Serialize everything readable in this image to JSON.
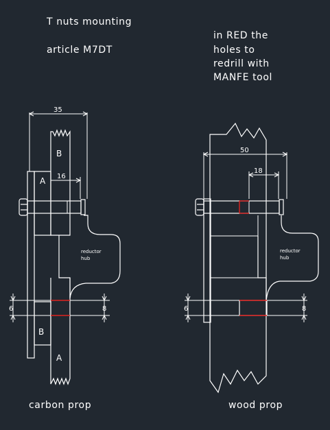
{
  "notes": {
    "title": "T nuts mounting",
    "article": "article M7DT",
    "red_note_1": "in RED the",
    "red_note_2": "holes to",
    "red_note_3": "redrill with",
    "red_note_4": "MANFE tool"
  },
  "carbon": {
    "caption": "carbon prop",
    "dim_total": "35",
    "dim_inner": "16",
    "label_b_top": "B",
    "label_a_top": "A",
    "label_b_bottom": "B",
    "label_a_bottom": "A",
    "hub_1": "reductor",
    "hub_2": "hub",
    "dim_left": "6",
    "dim_right": "8"
  },
  "wood": {
    "caption": "wood prop",
    "dim_total": "50",
    "dim_inner": "18",
    "hub_1": "reductor",
    "hub_2": "hub",
    "dim_left": "6",
    "dim_right": "8"
  },
  "colors": {
    "background": "#212830",
    "lines": "#ffffff",
    "redrill": "#e0221f"
  }
}
